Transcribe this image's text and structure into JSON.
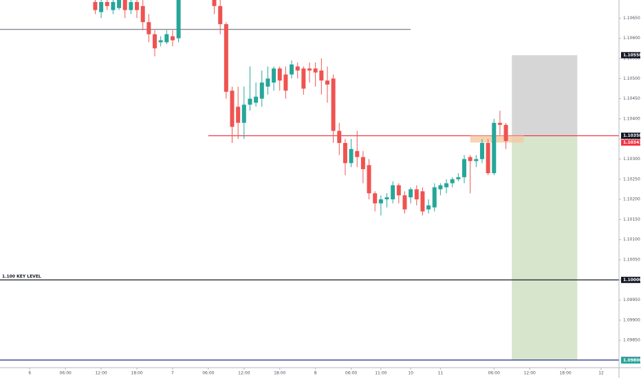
{
  "chart_data": {
    "type": "candlestick",
    "x": [
      11,
      12,
      13,
      14,
      15,
      16,
      17,
      18,
      19,
      20,
      21,
      22,
      23,
      24,
      25,
      31,
      32,
      33,
      34,
      35,
      36,
      37,
      38,
      39,
      40,
      41,
      42,
      43,
      44,
      45,
      46,
      47,
      48,
      49,
      50,
      51,
      52,
      53,
      54,
      55,
      56,
      57,
      58,
      59,
      60,
      61,
      62,
      63,
      64,
      65,
      66,
      67,
      68,
      69,
      70,
      71,
      72,
      73,
      74,
      75,
      76,
      77,
      78,
      79,
      80
    ],
    "open": [
      1.1069,
      1.10665,
      1.1069,
      1.1067,
      1.10675,
      1.10695,
      1.1067,
      1.1069,
      1.1068,
      1.1064,
      1.1061,
      1.1059,
      1.1059,
      1.10605,
      1.106,
      1.107,
      1.1068,
      1.10635,
      1.1047,
      1.1043,
      1.1039,
      1.10435,
      1.1044,
      1.1045,
      1.1048,
      1.1049,
      1.10525,
      1.1051,
      1.1051,
      1.1053,
      1.10525,
      1.10525,
      1.10525,
      1.1052,
      1.10495,
      1.105,
      1.1037,
      1.1034,
      1.1029,
      1.1032,
      1.10305,
      1.10285,
      1.10215,
      1.1019,
      1.102,
      1.102,
      1.10235,
      1.1021,
      1.10205,
      1.10225,
      1.1022,
      1.10175,
      1.1018,
      1.10225,
      1.1023,
      1.1024,
      1.1025,
      1.10255,
      1.10305,
      1.10295,
      1.103,
      1.1034,
      1.10265,
      1.1039,
      1.10385
    ],
    "high": [
      1.107,
      1.107,
      1.107,
      1.107,
      1.107,
      1.107,
      1.107,
      1.107,
      1.107,
      1.1066,
      1.1062,
      1.10605,
      1.1062,
      1.1062,
      1.107,
      1.107,
      1.107,
      1.1064,
      1.1048,
      1.1048,
      1.1048,
      1.1053,
      1.1049,
      1.1052,
      1.1053,
      1.1053,
      1.1053,
      1.1053,
      1.10545,
      1.1054,
      1.1053,
      1.1054,
      1.1054,
      1.1055,
      1.1053,
      1.1051,
      1.1039,
      1.1035,
      1.1035,
      1.1037,
      1.1032,
      1.103,
      1.1022,
      1.1021,
      1.10215,
      1.10245,
      1.1024,
      1.1022,
      1.1023,
      1.10235,
      1.1023,
      1.102,
      1.1024,
      1.1024,
      1.1025,
      1.10255,
      1.10265,
      1.1031,
      1.1031,
      1.1031,
      1.1035,
      1.1035,
      1.104,
      1.1042,
      1.1039
    ],
    "low": [
      1.1066,
      1.1065,
      1.1067,
      1.1066,
      1.1067,
      1.1065,
      1.1066,
      1.1065,
      1.1062,
      1.1059,
      1.10555,
      1.1058,
      1.10585,
      1.1058,
      1.1059,
      1.1066,
      1.1061,
      1.1045,
      1.1034,
      1.1035,
      1.1035,
      1.1042,
      1.1043,
      1.1043,
      1.1046,
      1.1047,
      1.1047,
      1.1045,
      1.105,
      1.105,
      1.1046,
      1.1049,
      1.1048,
      1.1046,
      1.1044,
      1.1034,
      1.1031,
      1.1026,
      1.1028,
      1.1028,
      1.1024,
      1.102,
      1.1017,
      1.1016,
      1.1018,
      1.1019,
      1.1019,
      1.10165,
      1.1019,
      1.10185,
      1.1016,
      1.10165,
      1.1017,
      1.1021,
      1.10215,
      1.1023,
      1.10245,
      1.1024,
      1.10215,
      1.1028,
      1.1029,
      1.1026,
      1.1026,
      1.1036,
      1.10325
    ],
    "close": [
      1.1067,
      1.1069,
      1.1068,
      1.1069,
      1.10695,
      1.1067,
      1.1069,
      1.1067,
      1.1064,
      1.1061,
      1.10575,
      1.10595,
      1.1061,
      1.10595,
      1.107,
      1.1068,
      1.10635,
      1.10467,
      1.1038,
      1.1039,
      1.10435,
      1.1045,
      1.10455,
      1.1049,
      1.105,
      1.10525,
      1.10495,
      1.1047,
      1.10535,
      1.1052,
      1.10475,
      1.1052,
      1.10515,
      1.10495,
      1.10485,
      1.1037,
      1.1034,
      1.1029,
      1.10325,
      1.10305,
      1.10275,
      1.10215,
      1.1019,
      1.102,
      1.10205,
      1.10235,
      1.1021,
      1.10175,
      1.10225,
      1.102,
      1.1017,
      1.10185,
      1.1023,
      1.10235,
      1.1024,
      1.1025,
      1.10255,
      1.103,
      1.10295,
      1.103,
      1.1034,
      1.10265,
      1.1039,
      1.10385,
      1.10345
    ],
    "up_color": "#26a69a",
    "down_color": "#ef5350",
    "xlim": [
      -5,
      99
    ],
    "ylim": [
      1.09782,
      1.10695
    ],
    "xticks": [
      {
        "value": 0,
        "label": "6"
      },
      {
        "value": 6,
        "label": "06:00"
      },
      {
        "value": 12,
        "label": "12:00"
      },
      {
        "value": 18,
        "label": "18:00"
      },
      {
        "value": 24,
        "label": "7"
      },
      {
        "value": 30,
        "label": "06:00"
      },
      {
        "value": 36,
        "label": "12:00"
      },
      {
        "value": 42,
        "label": "18:00"
      },
      {
        "value": 48,
        "label": "8"
      },
      {
        "value": 54,
        "label": "06:00"
      },
      {
        "value": 59,
        "label": "11:00"
      },
      {
        "value": 64,
        "label": "10"
      },
      {
        "value": 69,
        "label": "11"
      },
      {
        "value": 78,
        "label": "06:00"
      },
      {
        "value": 84,
        "label": "12:00"
      },
      {
        "value": 90,
        "label": "18:00"
      },
      {
        "value": 96,
        "label": "12"
      }
    ],
    "yticks": [
      {
        "value": 1.1065,
        "label": "1.10650"
      },
      {
        "value": 1.106,
        "label": "1.10600"
      },
      {
        "value": 1.1055,
        "label": "1.10550"
      },
      {
        "value": 1.105,
        "label": "1.10500"
      },
      {
        "value": 1.1045,
        "label": "1.10450"
      },
      {
        "value": 1.104,
        "label": "1.10400"
      },
      {
        "value": 1.1035,
        "label": "1.10350"
      },
      {
        "value": 1.103,
        "label": "1.10300"
      },
      {
        "value": 1.1025,
        "label": "1.10250"
      },
      {
        "value": 1.102,
        "label": "1.10200"
      },
      {
        "value": 1.1015,
        "label": "1.10150"
      },
      {
        "value": 1.101,
        "label": "1.10100"
      },
      {
        "value": 1.1005,
        "label": "1.10050"
      },
      {
        "value": 1.1,
        "label": "1.10000"
      },
      {
        "value": 1.0995,
        "label": "1.09950"
      },
      {
        "value": 1.099,
        "label": "1.09900"
      },
      {
        "value": 1.0985,
        "label": "1.09850"
      }
    ],
    "lines": [
      {
        "value": 1.10622,
        "color": "#787b86",
        "from": -5,
        "to": 64
      },
      {
        "value": 1.10358,
        "color": "#f23645",
        "from": 30,
        "to": 99
      },
      {
        "value": 1.1,
        "color": "#131722",
        "from": -5,
        "to": 99
      },
      {
        "value": 1.09801,
        "color": "#1e2a8a",
        "from": -5,
        "to": 99
      }
    ],
    "annotation": "1.100 KEY LEVEL",
    "position": {
      "stop": 1.10558,
      "entry": 1.10358,
      "target": 1.09801,
      "from": 81,
      "to": 92,
      "risk_color": "#d6d6d6",
      "reward_color": "#d7e5cc"
    },
    "zone": {
      "top": 1.10358,
      "bottom": 1.10341,
      "from": 74,
      "to": 83,
      "color": "#f5c9a3"
    },
    "price_labels": [
      {
        "value": 1.10558,
        "color": "#131722"
      },
      {
        "value": 1.10358,
        "color": "#131722"
      },
      {
        "value": 1.10341,
        "color": "#f23645"
      },
      {
        "value": 1.1,
        "label": "1.10000",
        "color": "#131722"
      },
      {
        "value": 1.09801,
        "color": "#1e2a8a"
      },
      {
        "value": 1.098,
        "label": "1.09800",
        "color": "#26a69a"
      }
    ]
  }
}
